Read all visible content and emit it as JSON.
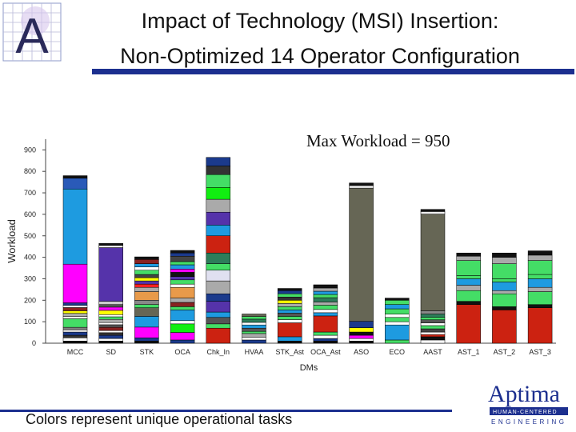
{
  "header": {
    "title_line1": "Impact of Technology (MSI) Insertion:",
    "title_line2": "Non-Optimized 14 Operator Configuration"
  },
  "logo": {
    "lettering": "A",
    "icon": "letter-a-grid-logo-icon"
  },
  "annotation": "Max Workload = 950",
  "footer": "Colors represent unique operational tasks",
  "brand": {
    "name": "Aptima",
    "tagline": "HUMAN-CENTERED",
    "tagline2": "ENGINEERING",
    "color": "#1c2f8f"
  },
  "chart_data": {
    "type": "bar",
    "stacked": true,
    "title": "",
    "xlabel": "DMs",
    "ylabel": "Workload",
    "ylim": [
      0,
      950
    ],
    "yticks": [
      0,
      100,
      200,
      300,
      400,
      500,
      600,
      700,
      800,
      900
    ],
    "grid": false,
    "legend": "none",
    "categories": [
      "MCC",
      "SD",
      "STK",
      "OCA",
      "Chk_In",
      "HVAA",
      "STK_Ast",
      "OCA_Ast",
      "ASO",
      "ECO",
      "AAST",
      "AST_1",
      "AST_2",
      "AST_3"
    ],
    "series_note": "each bar is a stack of task segments (value, color)",
    "stacks": [
      [
        [
          10,
          "#111111"
        ],
        [
          15,
          "#ffffff"
        ],
        [
          12,
          "#333333"
        ],
        [
          15,
          "#1b3a8c"
        ],
        [
          10,
          "#ffffff"
        ],
        [
          12,
          "#7f7f7f"
        ],
        [
          40,
          "#44dd66"
        ],
        [
          10,
          "#ffffff"
        ],
        [
          15,
          "#aaaaaa"
        ],
        [
          12,
          "#ffff00"
        ],
        [
          15,
          "#882222"
        ],
        [
          10,
          "#ffffff"
        ],
        [
          12,
          "#1b3a8c"
        ],
        [
          180,
          "#ff00ff"
        ],
        [
          350,
          "#1e9be0"
        ],
        [
          50,
          "#2a5ab8"
        ],
        [
          12,
          "#111111"
        ]
      ],
      [
        [
          10,
          "#111111"
        ],
        [
          12,
          "#ffffff"
        ],
        [
          15,
          "#1b3a8c"
        ],
        [
          12,
          "#333333"
        ],
        [
          10,
          "#ffffff"
        ],
        [
          15,
          "#882222"
        ],
        [
          12,
          "#555555"
        ],
        [
          10,
          "#ffffff"
        ],
        [
          15,
          "#aaaaaa"
        ],
        [
          12,
          "#44dd66"
        ],
        [
          10,
          "#ffffff"
        ],
        [
          20,
          "#ffff00"
        ],
        [
          15,
          "#ff00ff"
        ],
        [
          12,
          "#555555"
        ],
        [
          15,
          "#cccccc"
        ],
        [
          250,
          "#5533aa"
        ],
        [
          10,
          "#ffffff"
        ],
        [
          10,
          "#111111"
        ]
      ],
      [
        [
          10,
          "#111111"
        ],
        [
          15,
          "#1b3a8c"
        ],
        [
          50,
          "#ff00ff"
        ],
        [
          50,
          "#1e9be0"
        ],
        [
          40,
          "#666655"
        ],
        [
          15,
          "#44dd66"
        ],
        [
          20,
          "#888888"
        ],
        [
          40,
          "#e89a4a"
        ],
        [
          20,
          "#aaaaaa"
        ],
        [
          15,
          "#ff2222"
        ],
        [
          15,
          "#5533aa"
        ],
        [
          15,
          "#ffff00"
        ],
        [
          15,
          "#444444"
        ],
        [
          20,
          "#44dd66"
        ],
        [
          15,
          "#ffffff"
        ],
        [
          15,
          "#1e9be0"
        ],
        [
          20,
          "#882222"
        ],
        [
          12,
          "#111111"
        ]
      ],
      [
        [
          15,
          "#1b3a8c"
        ],
        [
          35,
          "#ff00ff"
        ],
        [
          40,
          "#11ee11"
        ],
        [
          15,
          "#ffffff"
        ],
        [
          50,
          "#1e9be0"
        ],
        [
          15,
          "#44dd66"
        ],
        [
          20,
          "#882222"
        ],
        [
          20,
          "#aaaaaa"
        ],
        [
          50,
          "#e89a4a"
        ],
        [
          15,
          "#ffffff"
        ],
        [
          20,
          "#44dd66"
        ],
        [
          15,
          "#5533aa"
        ],
        [
          20,
          "#111111"
        ],
        [
          15,
          "#ff00ff"
        ],
        [
          20,
          "#1e9be0"
        ],
        [
          15,
          "#44dd66"
        ],
        [
          25,
          "#444444"
        ],
        [
          15,
          "#1b3a8c"
        ],
        [
          12,
          "#111111"
        ]
      ],
      [
        [
          70,
          "#cc2211"
        ],
        [
          20,
          "#44dd66"
        ],
        [
          30,
          "#555555"
        ],
        [
          25,
          "#1e9be0"
        ],
        [
          50,
          "#5533aa"
        ],
        [
          35,
          "#1b3a8c"
        ],
        [
          60,
          "#aaaaaa"
        ],
        [
          50,
          "#e0e0f0"
        ],
        [
          30,
          "#44dd66"
        ],
        [
          50,
          "#2d7d5a"
        ],
        [
          80,
          "#cc2211"
        ],
        [
          50,
          "#1e9be0"
        ],
        [
          60,
          "#5533aa"
        ],
        [
          60,
          "#aaaaaa"
        ],
        [
          55,
          "#11ee11"
        ],
        [
          60,
          "#44dd66"
        ],
        [
          40,
          "#333333"
        ],
        [
          40,
          "#1b3a8c"
        ]
      ],
      [
        [
          15,
          "#1b3a8c"
        ],
        [
          12,
          "#ffffff"
        ],
        [
          18,
          "#aaaaaa"
        ],
        [
          10,
          "#44dd66"
        ],
        [
          15,
          "#555555"
        ],
        [
          15,
          "#1e9be0"
        ],
        [
          12,
          "#ffffff"
        ],
        [
          15,
          "#2d7d5a"
        ],
        [
          12,
          "#44dd66"
        ],
        [
          12,
          "#666655"
        ]
      ],
      [
        [
          10,
          "#111111"
        ],
        [
          20,
          "#1e9be0"
        ],
        [
          65,
          "#cc2211"
        ],
        [
          15,
          "#ffffff"
        ],
        [
          15,
          "#44dd66"
        ],
        [
          15,
          "#555555"
        ],
        [
          15,
          "#1e9be0"
        ],
        [
          15,
          "#44dd66"
        ],
        [
          15,
          "#aaaaaa"
        ],
        [
          15,
          "#ffff00"
        ],
        [
          15,
          "#333333"
        ],
        [
          15,
          "#44dd66"
        ],
        [
          15,
          "#1b3a8c"
        ],
        [
          10,
          "#111111"
        ]
      ],
      [
        [
          10,
          "#111111"
        ],
        [
          12,
          "#1b3a8c"
        ],
        [
          15,
          "#ffffff"
        ],
        [
          15,
          "#44dd66"
        ],
        [
          75,
          "#cc2211"
        ],
        [
          15,
          "#1e9be0"
        ],
        [
          15,
          "#ffffff"
        ],
        [
          20,
          "#44dd66"
        ],
        [
          15,
          "#aaaaaa"
        ],
        [
          20,
          "#2d7d5a"
        ],
        [
          15,
          "#44dd66"
        ],
        [
          15,
          "#1e9be0"
        ],
        [
          15,
          "#aaaaaa"
        ],
        [
          15,
          "#111111"
        ]
      ],
      [
        [
          10,
          "#111111"
        ],
        [
          12,
          "#ffffff"
        ],
        [
          15,
          "#ff00ff"
        ],
        [
          15,
          "#111111"
        ],
        [
          20,
          "#ffff00"
        ],
        [
          30,
          "#1b3a8c"
        ],
        [
          620,
          "#666655"
        ],
        [
          12,
          "#eeeeee"
        ],
        [
          12,
          "#111111"
        ]
      ],
      [
        [
          15,
          "#44dd66"
        ],
        [
          70,
          "#1e9be0"
        ],
        [
          15,
          "#ffffff"
        ],
        [
          20,
          "#44dd66"
        ],
        [
          15,
          "#ffffff"
        ],
        [
          25,
          "#44dd66"
        ],
        [
          20,
          "#1e9be0"
        ],
        [
          20,
          "#44dd66"
        ],
        [
          10,
          "#111111"
        ]
      ],
      [
        [
          15,
          "#ffffff"
        ],
        [
          15,
          "#111111"
        ],
        [
          10,
          "#cc2211"
        ],
        [
          12,
          "#ffffff"
        ],
        [
          15,
          "#444444"
        ],
        [
          15,
          "#44dd66"
        ],
        [
          12,
          "#ffffff"
        ],
        [
          15,
          "#555555"
        ],
        [
          12,
          "#44dd66"
        ],
        [
          15,
          "#2d7d5a"
        ],
        [
          15,
          "#888888"
        ],
        [
          450,
          "#666655"
        ],
        [
          12,
          "#eeeeee"
        ],
        [
          10,
          "#111111"
        ]
      ],
      [
        [
          180,
          "#cc2211"
        ],
        [
          15,
          "#111111"
        ],
        [
          50,
          "#44dd66"
        ],
        [
          25,
          "#aaaaaa"
        ],
        [
          30,
          "#1e9be0"
        ],
        [
          15,
          "#44dd66"
        ],
        [
          70,
          "#44dd66"
        ],
        [
          20,
          "#aaaaaa"
        ],
        [
          15,
          "#111111"
        ]
      ],
      [
        [
          155,
          "#cc2211"
        ],
        [
          15,
          "#111111"
        ],
        [
          60,
          "#44dd66"
        ],
        [
          15,
          "#aaaaaa"
        ],
        [
          40,
          "#1e9be0"
        ],
        [
          15,
          "#44dd66"
        ],
        [
          70,
          "#44dd66"
        ],
        [
          30,
          "#aaaaaa"
        ],
        [
          20,
          "#111111"
        ]
      ],
      [
        [
          165,
          "#cc2211"
        ],
        [
          15,
          "#111111"
        ],
        [
          60,
          "#44dd66"
        ],
        [
          20,
          "#aaaaaa"
        ],
        [
          40,
          "#1e9be0"
        ],
        [
          20,
          "#44dd66"
        ],
        [
          65,
          "#44dd66"
        ],
        [
          25,
          "#aaaaaa"
        ],
        [
          20,
          "#111111"
        ]
      ]
    ]
  }
}
